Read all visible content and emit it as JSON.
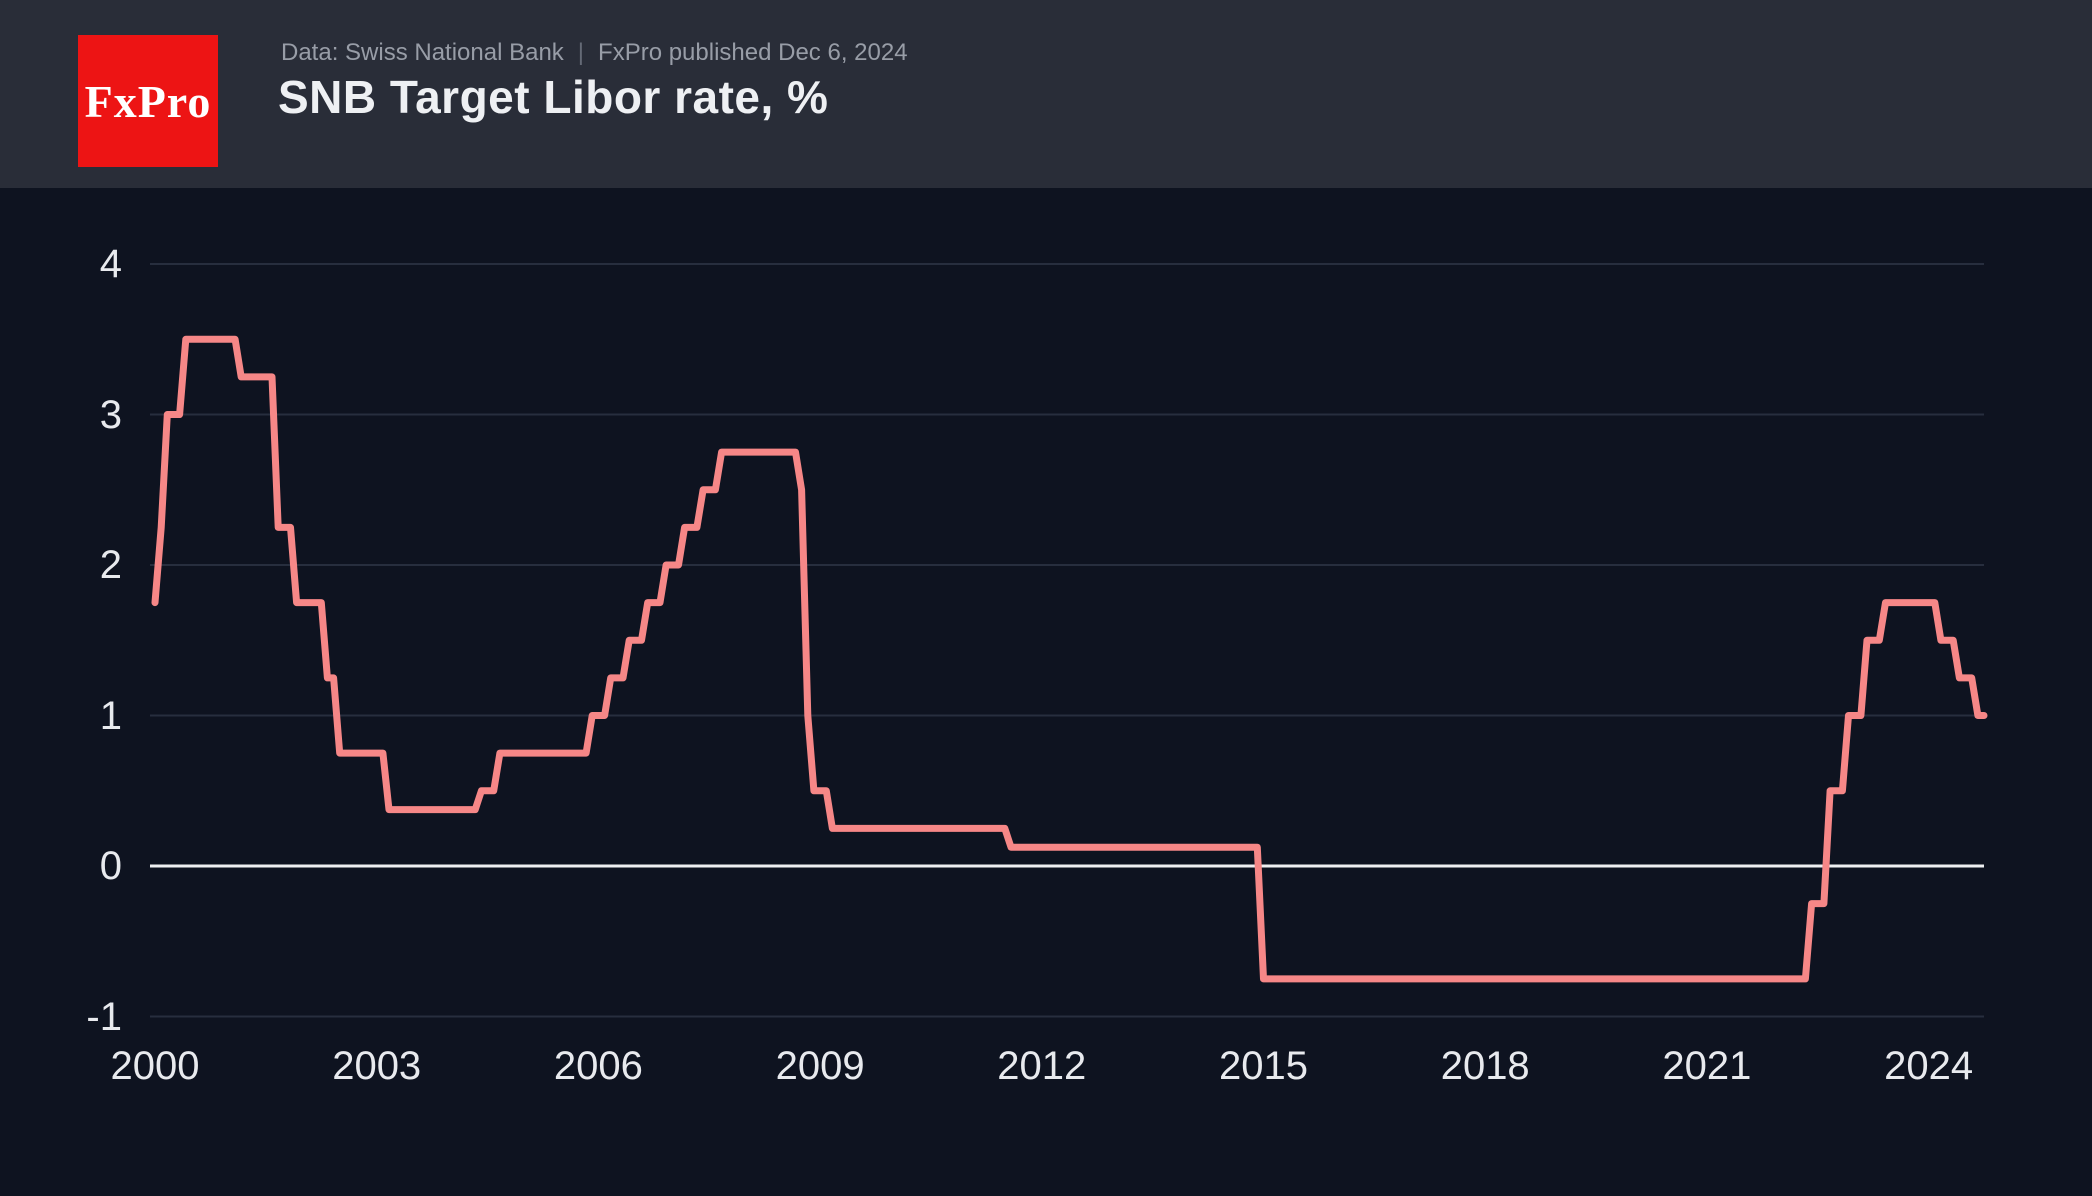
{
  "header": {
    "logo_text": "FxPro",
    "logo_color": "#ed1414",
    "source": "Data: Swiss National Bank",
    "separator": "|",
    "published": "FxPro published Dec 6, 2024",
    "title": "SNB Target Libor rate, %"
  },
  "chart_data": {
    "type": "line",
    "title": "SNB Target Libor rate, %",
    "ylabel": "",
    "xlabel": "",
    "x_ticks": [
      2000,
      2003,
      2006,
      2009,
      2012,
      2015,
      2018,
      2021,
      2024
    ],
    "y_ticks": [
      4,
      3,
      2,
      1,
      0,
      -1
    ],
    "ylim": [
      -1.25,
      4.3
    ],
    "xlim": [
      2000.0,
      2024.83
    ],
    "grid": "horizontal",
    "legend": "none",
    "line_color": "#f68787",
    "zero_line_color": "#eef0f2",
    "grid_color": "#272e3e",
    "series": [
      {
        "name": "SNB target Libor rate, % (monthly, step changes)",
        "frequency": "monthly",
        "end_month": "2024-10",
        "steps": [
          {
            "month": "2000-01",
            "value": 1.75
          },
          {
            "month": "2000-02",
            "value": 2.25
          },
          {
            "month": "2000-03",
            "value": 3.0
          },
          {
            "month": "2000-06",
            "value": 3.5
          },
          {
            "month": "2001-03",
            "value": 3.25
          },
          {
            "month": "2001-09",
            "value": 2.25
          },
          {
            "month": "2001-12",
            "value": 1.75
          },
          {
            "month": "2002-05",
            "value": 1.25
          },
          {
            "month": "2002-07",
            "value": 0.75
          },
          {
            "month": "2003-03",
            "value": 0.375
          },
          {
            "month": "2004-06",
            "value": 0.5
          },
          {
            "month": "2004-09",
            "value": 0.75
          },
          {
            "month": "2005-12",
            "value": 1.0
          },
          {
            "month": "2006-03",
            "value": 1.25
          },
          {
            "month": "2006-06",
            "value": 1.5
          },
          {
            "month": "2006-09",
            "value": 1.75
          },
          {
            "month": "2006-12",
            "value": 2.0
          },
          {
            "month": "2007-03",
            "value": 2.25
          },
          {
            "month": "2007-06",
            "value": 2.5
          },
          {
            "month": "2007-09",
            "value": 2.75
          },
          {
            "month": "2008-10",
            "value": 2.5
          },
          {
            "month": "2008-11",
            "value": 1.0
          },
          {
            "month": "2008-12",
            "value": 0.5
          },
          {
            "month": "2009-03",
            "value": 0.25
          },
          {
            "month": "2011-08",
            "value": 0.125
          },
          {
            "month": "2015-01",
            "value": -0.75
          },
          {
            "month": "2022-06",
            "value": -0.25
          },
          {
            "month": "2022-09",
            "value": 0.5
          },
          {
            "month": "2022-12",
            "value": 1.0
          },
          {
            "month": "2023-03",
            "value": 1.5
          },
          {
            "month": "2023-06",
            "value": 1.75
          },
          {
            "month": "2024-03",
            "value": 1.5
          },
          {
            "month": "2024-06",
            "value": 1.25
          },
          {
            "month": "2024-09",
            "value": 1.0
          }
        ]
      }
    ]
  }
}
